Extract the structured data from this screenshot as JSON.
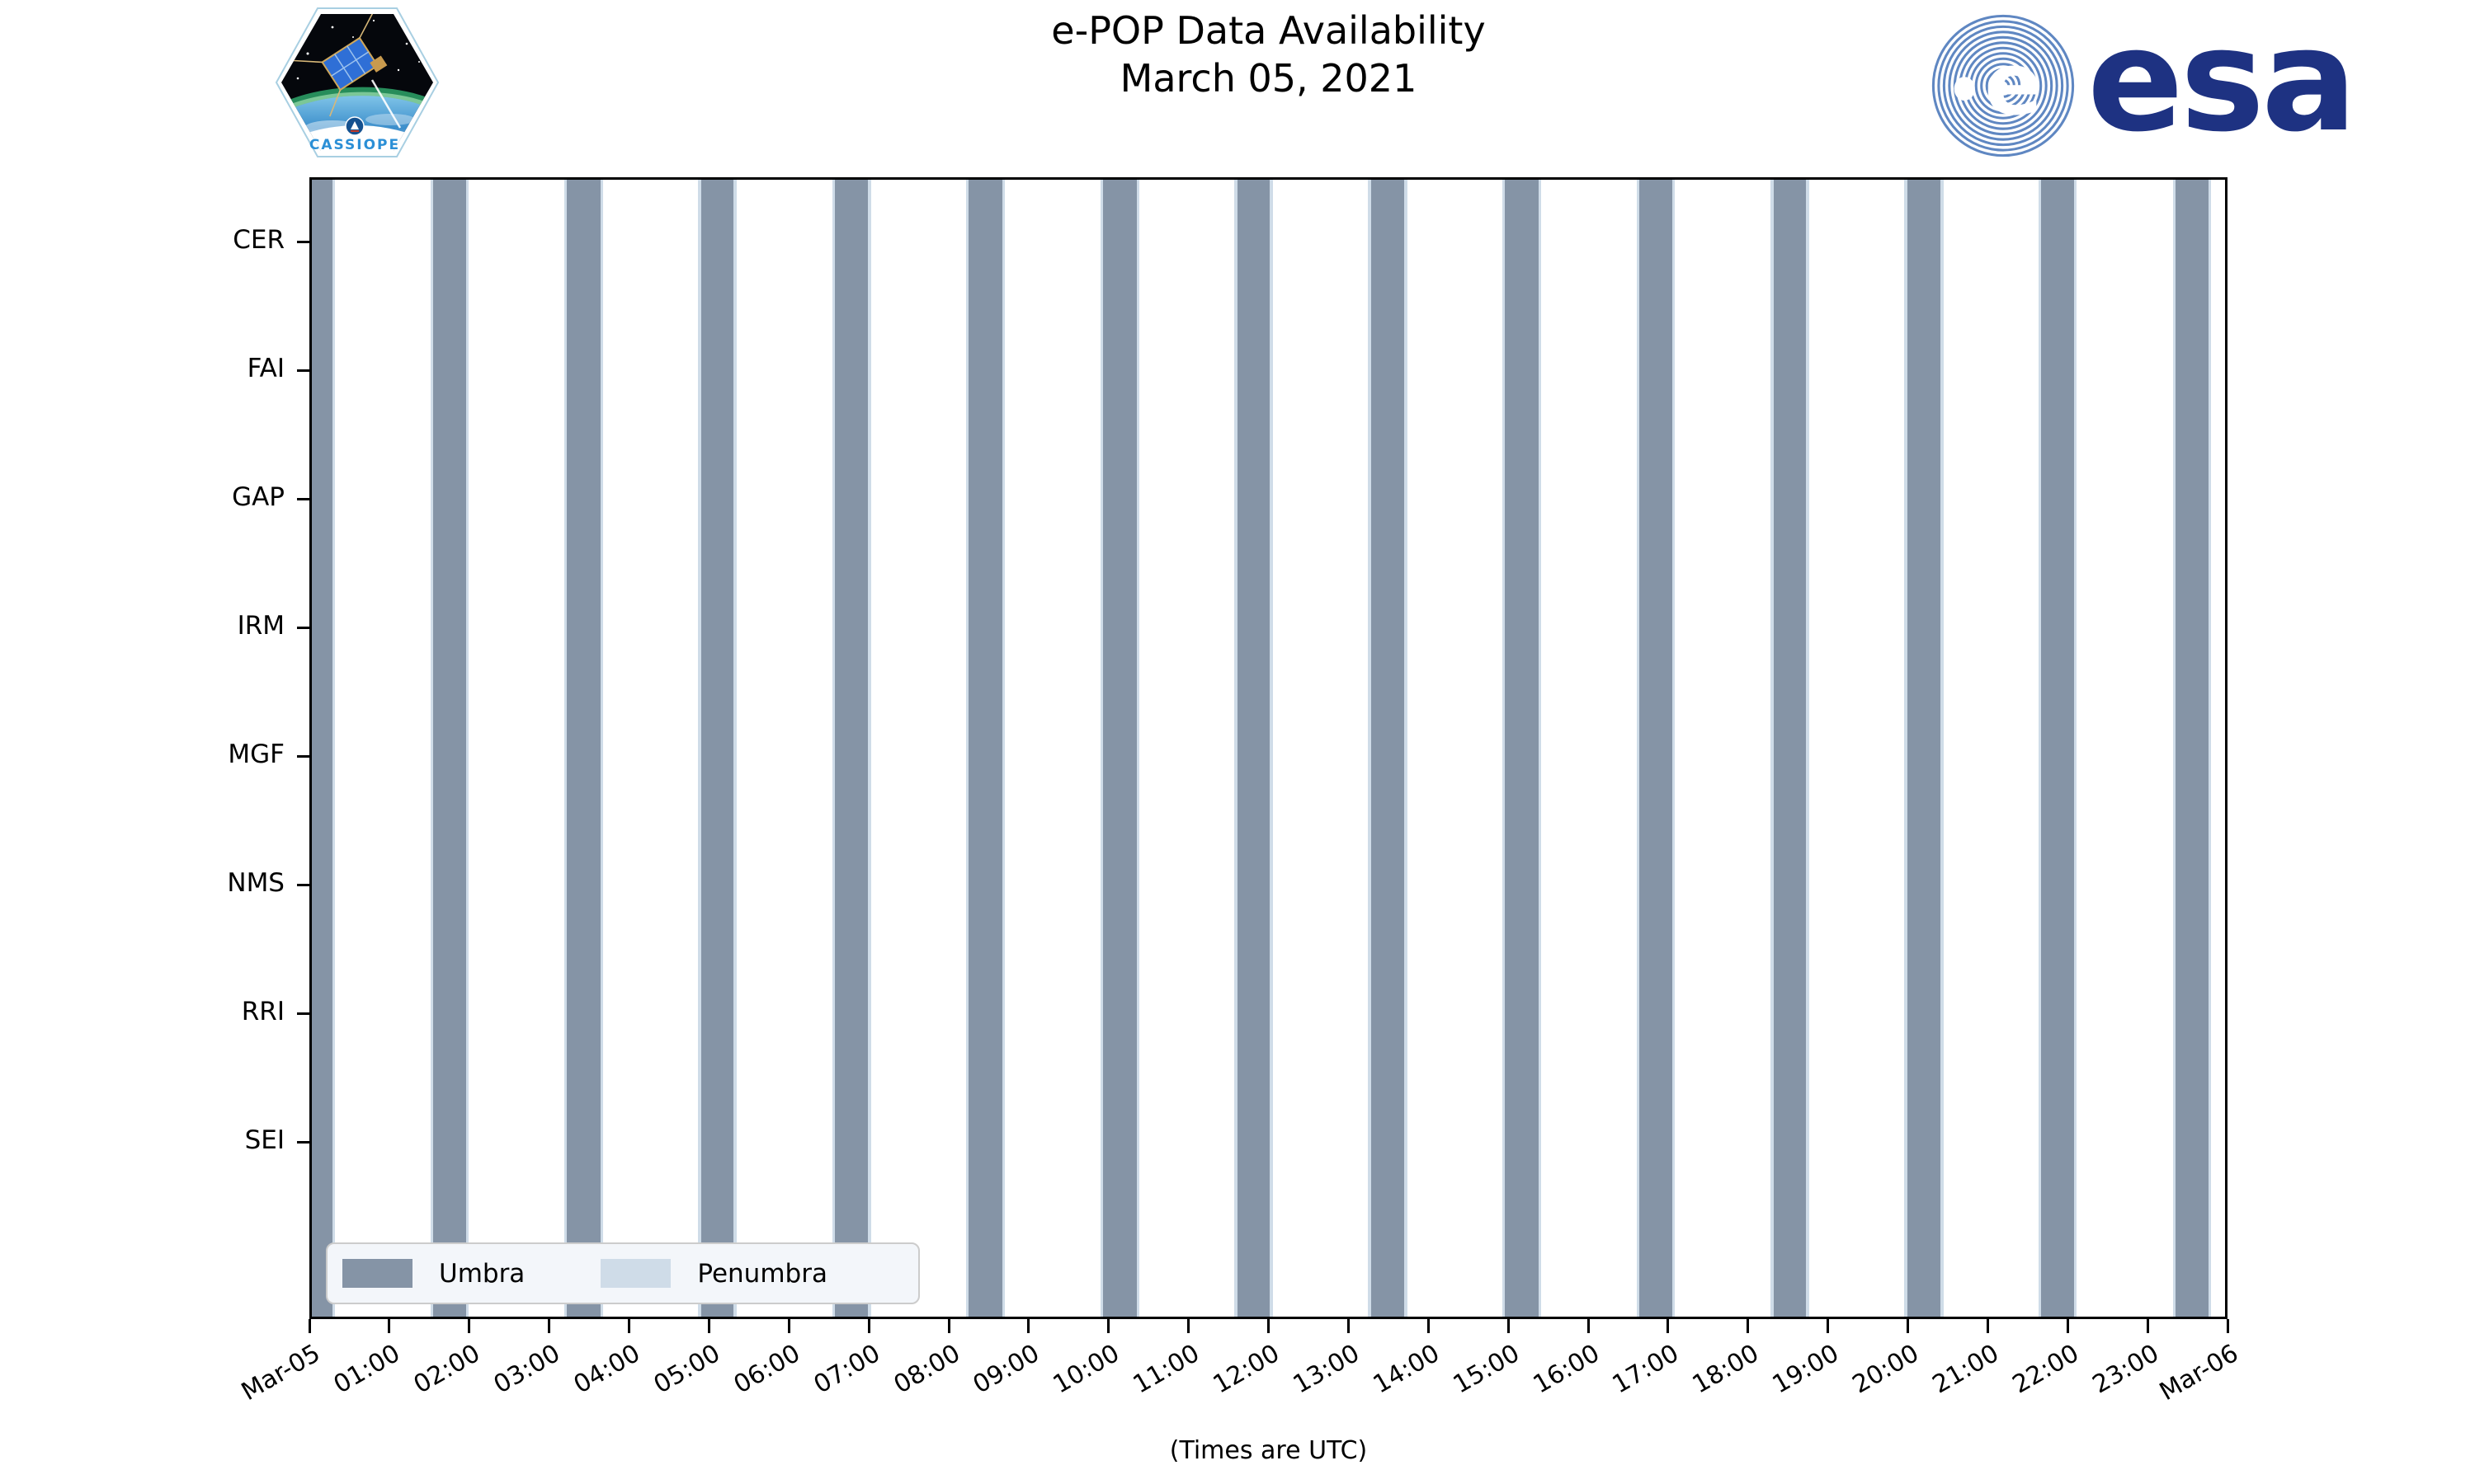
{
  "branding": {
    "mission_patch_text": "CASSIOPE",
    "esa_wordmark": "esa"
  },
  "chart_data": {
    "type": "availability-timeline",
    "title": "e-POP Data Availability",
    "subtitle": "March 05, 2021",
    "xlabel": "(Times are UTC)",
    "x_axis": {
      "start": "Mar-05 00:00",
      "end": "Mar-06 00:00",
      "hours_span": 24,
      "tick_labels": [
        "Mar-05",
        "01:00",
        "02:00",
        "03:00",
        "04:00",
        "05:00",
        "06:00",
        "07:00",
        "08:00",
        "09:00",
        "10:00",
        "11:00",
        "12:00",
        "13:00",
        "14:00",
        "15:00",
        "16:00",
        "17:00",
        "18:00",
        "19:00",
        "20:00",
        "21:00",
        "22:00",
        "23:00",
        "Mar-06"
      ]
    },
    "y_categories": [
      "CER",
      "FAI",
      "GAP",
      "IRM",
      "MGF",
      "NMS",
      "RRI",
      "SEI"
    ],
    "legend": {
      "entries": [
        {
          "label": "Umbra",
          "color": "#8594a6"
        },
        {
          "label": "Penumbra",
          "color": "#cfdce8"
        }
      ],
      "position": "lower-left"
    },
    "umbra_intervals_hours": [
      [
        0.0,
        0.29
      ],
      [
        1.55,
        1.96
      ],
      [
        3.22,
        3.64
      ],
      [
        4.9,
        5.31
      ],
      [
        6.58,
        6.99
      ],
      [
        8.25,
        8.67
      ],
      [
        9.93,
        10.35
      ],
      [
        11.61,
        12.02
      ],
      [
        13.28,
        13.7
      ],
      [
        14.96,
        15.38
      ],
      [
        16.64,
        17.05
      ],
      [
        18.32,
        18.73
      ],
      [
        19.99,
        20.41
      ],
      [
        21.67,
        22.08
      ],
      [
        23.35,
        23.76
      ]
    ],
    "penumbra_edge_hours": 0.035,
    "grid": false,
    "colors": {
      "umbra": "#8594a6",
      "penumbra": "#cfdce8",
      "axes": "#000000",
      "legend_bg": "#f3f6fa",
      "esa_navy": "#1e3282",
      "esa_stripe_blue": "#5f87c2",
      "cassiope_text_blue": "#2b8fd6"
    }
  }
}
